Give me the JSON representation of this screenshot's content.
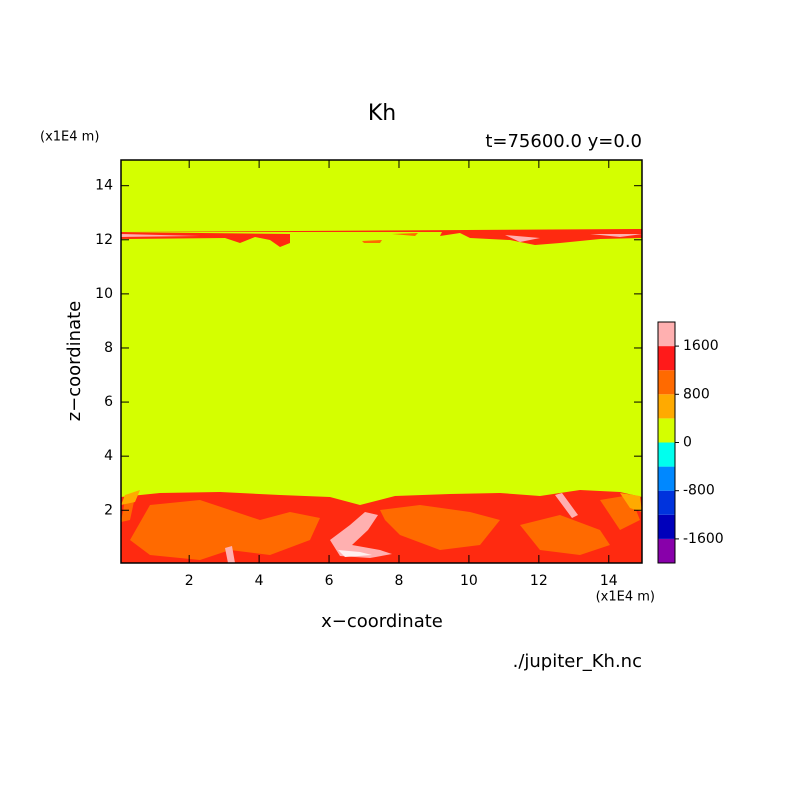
{
  "chart_data": {
    "type": "contour",
    "title": "Kh",
    "subtitle": "t=75600.0 y=0.0",
    "xlabel": "x−coordinate",
    "ylabel": "z−coordinate",
    "x_unit": "(x1E4 m)",
    "y_unit": "(x1E4 m)",
    "source": "./jupiter_Kh.nc",
    "xlim": [
      0.05,
      14.95
    ],
    "ylim": [
      0.05,
      14.95
    ],
    "xticks": [
      2,
      4,
      6,
      8,
      10,
      12,
      14
    ],
    "yticks": [
      2,
      4,
      6,
      8,
      10,
      12,
      14
    ],
    "colorbar": {
      "levels": [
        -2000,
        -1600,
        -1200,
        -800,
        -400,
        0,
        400,
        800,
        1200,
        1600,
        2000
      ],
      "colors": [
        "#8800aa",
        "#0000bb",
        "#0033dd",
        "#0088ff",
        "#00ffee",
        "#d4ff00",
        "#ffaa00",
        "#ff6a00",
        "#ff1a1a",
        "#ffb0b0"
      ],
      "ticks": [
        -1600,
        -800,
        0,
        800,
        1600
      ]
    }
  }
}
